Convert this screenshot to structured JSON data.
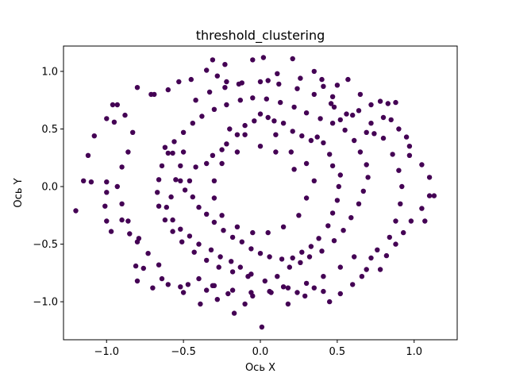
{
  "chart_data": {
    "type": "scatter",
    "title": "threshold_clustering",
    "xlabel": "Ось X",
    "ylabel": "Ось Y",
    "xlim": [
      -1.28,
      1.28
    ],
    "ylim": [
      -1.33,
      1.22
    ],
    "xticks": [
      -1.0,
      -0.5,
      0.0,
      0.5,
      1.0
    ],
    "yticks": [
      -1.0,
      -0.5,
      0.0,
      0.5,
      1.0
    ],
    "xtick_labels": [
      "−1.0",
      "−0.5",
      "0.0",
      "0.5",
      "1.0"
    ],
    "ytick_labels": [
      "−1.0",
      "−0.5",
      "0.0",
      "0.5",
      "1.0"
    ],
    "grid": false,
    "marker_color": "#440154",
    "series": [
      {
        "points": [
          [
            -0.8,
            0.86
          ],
          [
            -0.71,
            0.8
          ],
          [
            -0.69,
            0.8
          ],
          [
            -0.6,
            0.84
          ],
          [
            -0.53,
            0.91
          ],
          [
            -0.45,
            0.93
          ],
          [
            -0.35,
            1.01
          ],
          [
            -0.31,
            1.1
          ],
          [
            -0.28,
            0.96
          ],
          [
            -0.23,
            1.06
          ],
          [
            -0.22,
            0.91
          ],
          [
            -0.14,
            0.89
          ],
          [
            -0.05,
            1.1
          ],
          [
            0.02,
            1.12
          ],
          [
            0.05,
            0.92
          ],
          [
            0.11,
            0.98
          ],
          [
            0.21,
            1.11
          ],
          [
            0.26,
            0.94
          ],
          [
            0.35,
            1.0
          ],
          [
            0.4,
            0.93
          ],
          [
            0.5,
            0.88
          ],
          [
            0.57,
            0.93
          ],
          [
            0.65,
            0.8
          ],
          [
            0.72,
            0.71
          ],
          [
            0.78,
            0.74
          ],
          [
            0.83,
            0.72
          ],
          [
            0.88,
            0.73
          ],
          [
            -0.96,
            0.71
          ],
          [
            -0.93,
            0.71
          ],
          [
            -0.95,
            0.56
          ],
          [
            -1.0,
            0.59
          ],
          [
            -1.08,
            0.44
          ],
          [
            -1.12,
            0.27
          ],
          [
            -1.15,
            0.05
          ],
          [
            -1.1,
            0.04
          ],
          [
            -1.0,
            0.04
          ],
          [
            -1.01,
            -0.17
          ],
          [
            -1.0,
            -0.3
          ],
          [
            -0.97,
            -0.39
          ],
          [
            -0.9,
            -0.29
          ],
          [
            -0.85,
            -0.41
          ],
          [
            -0.8,
            -0.48
          ],
          [
            -0.81,
            -0.69
          ],
          [
            -0.8,
            -0.82
          ],
          [
            -0.76,
            -0.71
          ],
          [
            -0.7,
            -0.88
          ],
          [
            -0.64,
            -0.8
          ],
          [
            -0.6,
            -0.85
          ],
          [
            -0.52,
            -0.87
          ],
          [
            -0.5,
            -0.92
          ],
          [
            -0.47,
            -0.85
          ],
          [
            -0.39,
            -1.02
          ],
          [
            -0.35,
            -0.9
          ],
          [
            -0.31,
            -0.86
          ],
          [
            -0.28,
            -0.98
          ],
          [
            -0.21,
            -0.93
          ],
          [
            -0.17,
            -1.1
          ],
          [
            -0.1,
            -1.02
          ],
          [
            -0.05,
            -0.95
          ],
          [
            0.01,
            -1.22
          ],
          [
            0.07,
            -0.92
          ],
          [
            0.15,
            -0.87
          ],
          [
            0.18,
            -1.02
          ],
          [
            0.24,
            -0.92
          ],
          [
            0.29,
            -0.95
          ],
          [
            0.35,
            -0.88
          ],
          [
            0.41,
            -0.91
          ],
          [
            0.45,
            -1.0
          ],
          [
            0.52,
            -0.93
          ],
          [
            0.6,
            -0.85
          ],
          [
            0.66,
            -0.78
          ],
          [
            0.69,
            -0.72
          ],
          [
            0.78,
            -0.72
          ],
          [
            0.82,
            -0.6
          ],
          [
            0.88,
            -0.5
          ],
          [
            0.93,
            -0.4
          ],
          [
            0.98,
            -0.3
          ],
          [
            1.07,
            -0.3
          ],
          [
            1.05,
            -0.19
          ],
          [
            1.1,
            -0.08
          ],
          [
            1.1,
            0.08
          ],
          [
            1.05,
            0.19
          ],
          [
            0.97,
            0.27
          ],
          [
            0.95,
            0.43
          ],
          [
            0.9,
            0.5
          ],
          [
            0.85,
            0.58
          ],
          [
            0.8,
            0.6
          ],
          [
            0.74,
            0.46
          ],
          [
            0.69,
            0.47
          ],
          [
            0.6,
            0.62
          ],
          [
            0.52,
            0.58
          ],
          [
            0.48,
            0.69
          ],
          [
            0.47,
            0.78
          ],
          [
            0.41,
            0.87
          ],
          [
            -0.62,
            0.34
          ],
          [
            -0.57,
            0.29
          ],
          [
            -0.5,
            0.3
          ],
          [
            -0.52,
            0.18
          ],
          [
            -0.55,
            0.06
          ],
          [
            -0.46,
            0.05
          ],
          [
            -0.42,
            0.17
          ],
          [
            -0.35,
            0.2
          ],
          [
            -0.31,
            0.27
          ],
          [
            -0.25,
            0.32
          ],
          [
            -0.22,
            0.37
          ],
          [
            -0.15,
            0.45
          ],
          [
            -0.1,
            0.53
          ],
          [
            -0.04,
            0.57
          ],
          [
            0.0,
            0.63
          ],
          [
            0.05,
            0.6
          ],
          [
            0.09,
            0.57
          ],
          [
            0.15,
            0.55
          ],
          [
            0.21,
            0.48
          ],
          [
            0.27,
            0.44
          ],
          [
            0.33,
            0.4
          ],
          [
            0.37,
            0.43
          ],
          [
            0.41,
            0.38
          ],
          [
            0.45,
            0.28
          ],
          [
            0.47,
            0.18
          ],
          [
            0.52,
            0.1
          ],
          [
            0.51,
            0.0
          ],
          [
            0.5,
            -0.12
          ],
          [
            0.47,
            -0.23
          ],
          [
            0.44,
            -0.34
          ],
          [
            0.38,
            -0.45
          ],
          [
            0.33,
            -0.52
          ],
          [
            0.27,
            -0.57
          ],
          [
            0.21,
            -0.62
          ],
          [
            0.14,
            -0.63
          ],
          [
            0.06,
            -0.61
          ],
          [
            0.0,
            -0.58
          ],
          [
            -0.06,
            -0.54
          ],
          [
            -0.12,
            -0.48
          ],
          [
            -0.18,
            -0.44
          ],
          [
            -0.24,
            -0.38
          ],
          [
            -0.3,
            -0.31
          ],
          [
            -0.35,
            -0.24
          ],
          [
            -0.4,
            -0.18
          ],
          [
            -0.44,
            -0.09
          ],
          [
            -0.49,
            -0.03
          ],
          [
            -0.52,
            0.05
          ],
          [
            -0.58,
            -0.09
          ],
          [
            -0.61,
            -0.18
          ],
          [
            -0.57,
            -0.29
          ],
          [
            -0.52,
            -0.37
          ],
          [
            -0.46,
            -0.43
          ],
          [
            -0.4,
            -0.5
          ],
          [
            -0.32,
            -0.55
          ],
          [
            -0.26,
            -0.61
          ],
          [
            -0.19,
            -0.65
          ],
          [
            -0.13,
            -0.7
          ],
          [
            -0.06,
            -0.76
          ],
          [
            0.03,
            -0.82
          ],
          [
            0.11,
            -0.78
          ],
          [
            0.19,
            -0.7
          ],
          [
            0.26,
            -0.66
          ],
          [
            0.32,
            -0.61
          ],
          [
            0.4,
            -0.56
          ],
          [
            0.48,
            -0.47
          ],
          [
            0.54,
            -0.38
          ],
          [
            0.59,
            -0.27
          ],
          [
            0.64,
            -0.15
          ],
          [
            0.67,
            -0.04
          ],
          [
            0.7,
            0.08
          ],
          [
            0.69,
            0.19
          ],
          [
            0.65,
            0.3
          ],
          [
            0.61,
            0.4
          ],
          [
            0.55,
            0.49
          ],
          [
            0.47,
            0.55
          ],
          [
            0.39,
            0.59
          ],
          [
            0.3,
            0.64
          ],
          [
            0.22,
            0.69
          ],
          [
            0.13,
            0.73
          ],
          [
            0.04,
            0.76
          ],
          [
            -0.05,
            0.77
          ],
          [
            -0.13,
            0.75
          ],
          [
            -0.22,
            0.71
          ],
          [
            -0.3,
            0.67
          ],
          [
            -0.38,
            0.61
          ],
          [
            -0.44,
            0.55
          ],
          [
            -0.5,
            0.47
          ],
          [
            -0.56,
            0.39
          ],
          [
            -0.6,
            0.29
          ],
          [
            -0.64,
            0.18
          ],
          [
            -0.66,
            0.06
          ],
          [
            -0.67,
            -0.05
          ],
          [
            -0.66,
            -0.17
          ],
          [
            -0.62,
            -0.29
          ],
          [
            -0.57,
            -0.39
          ],
          [
            -0.51,
            -0.48
          ],
          [
            -0.43,
            -0.57
          ],
          [
            -0.35,
            -0.64
          ],
          [
            -0.27,
            -0.7
          ],
          [
            -0.18,
            -0.74
          ],
          [
            -0.08,
            -0.78
          ],
          [
            -0.2,
            0.5
          ],
          [
            -0.1,
            0.45
          ],
          [
            0.1,
            0.45
          ],
          [
            0.2,
            0.3
          ],
          [
            0.3,
            0.2
          ],
          [
            0.35,
            0.05
          ],
          [
            0.3,
            -0.1
          ],
          [
            0.25,
            -0.25
          ],
          [
            0.15,
            -0.35
          ],
          [
            0.05,
            -0.4
          ],
          [
            -0.05,
            -0.4
          ],
          [
            -0.15,
            -0.35
          ],
          [
            -0.25,
            -0.25
          ],
          [
            -0.3,
            -0.1
          ],
          [
            -0.3,
            0.05
          ],
          [
            -0.25,
            0.2
          ],
          [
            -0.15,
            0.3
          ],
          [
            0.0,
            0.35
          ],
          [
            0.1,
            0.3
          ],
          [
            0.22,
            0.15
          ],
          [
            -0.88,
            0.62
          ],
          [
            -0.83,
            0.47
          ],
          [
            -0.86,
            0.3
          ],
          [
            -0.9,
            0.17
          ],
          [
            -0.93,
            0.0
          ],
          [
            -0.9,
            -0.15
          ],
          [
            -0.86,
            -0.3
          ],
          [
            -0.79,
            -0.45
          ],
          [
            -0.73,
            -0.58
          ],
          [
            -0.66,
            -0.68
          ],
          [
            0.76,
            -0.55
          ],
          [
            0.84,
            -0.44
          ],
          [
            0.88,
            -0.3
          ],
          [
            0.91,
            -0.15
          ],
          [
            0.92,
            0.0
          ],
          [
            0.9,
            0.14
          ],
          [
            0.86,
            0.28
          ],
          [
            0.8,
            0.42
          ],
          [
            0.72,
            0.55
          ],
          [
            0.64,
            0.66
          ],
          [
            -0.42,
            0.75
          ],
          [
            -0.33,
            0.82
          ],
          [
            -0.23,
            0.86
          ],
          [
            -0.12,
            0.9
          ],
          [
            0.0,
            0.91
          ],
          [
            0.12,
            0.89
          ],
          [
            0.24,
            0.85
          ],
          [
            0.35,
            0.8
          ],
          [
            0.46,
            0.72
          ],
          [
            0.56,
            0.63
          ],
          [
            -0.4,
            -0.8
          ],
          [
            -0.3,
            -0.86
          ],
          [
            -0.18,
            -0.9
          ],
          [
            -0.06,
            -0.92
          ],
          [
            0.06,
            -0.91
          ],
          [
            0.18,
            -0.88
          ],
          [
            0.3,
            -0.84
          ],
          [
            0.41,
            -0.78
          ],
          [
            0.52,
            -0.7
          ],
          [
            0.61,
            -0.61
          ],
          [
            1.13,
            -0.08
          ],
          [
            -1.2,
            -0.21
          ],
          [
            0.97,
            0.35
          ],
          [
            -1.0,
            -0.05
          ],
          [
            0.72,
            -0.62
          ]
        ]
      }
    ]
  }
}
